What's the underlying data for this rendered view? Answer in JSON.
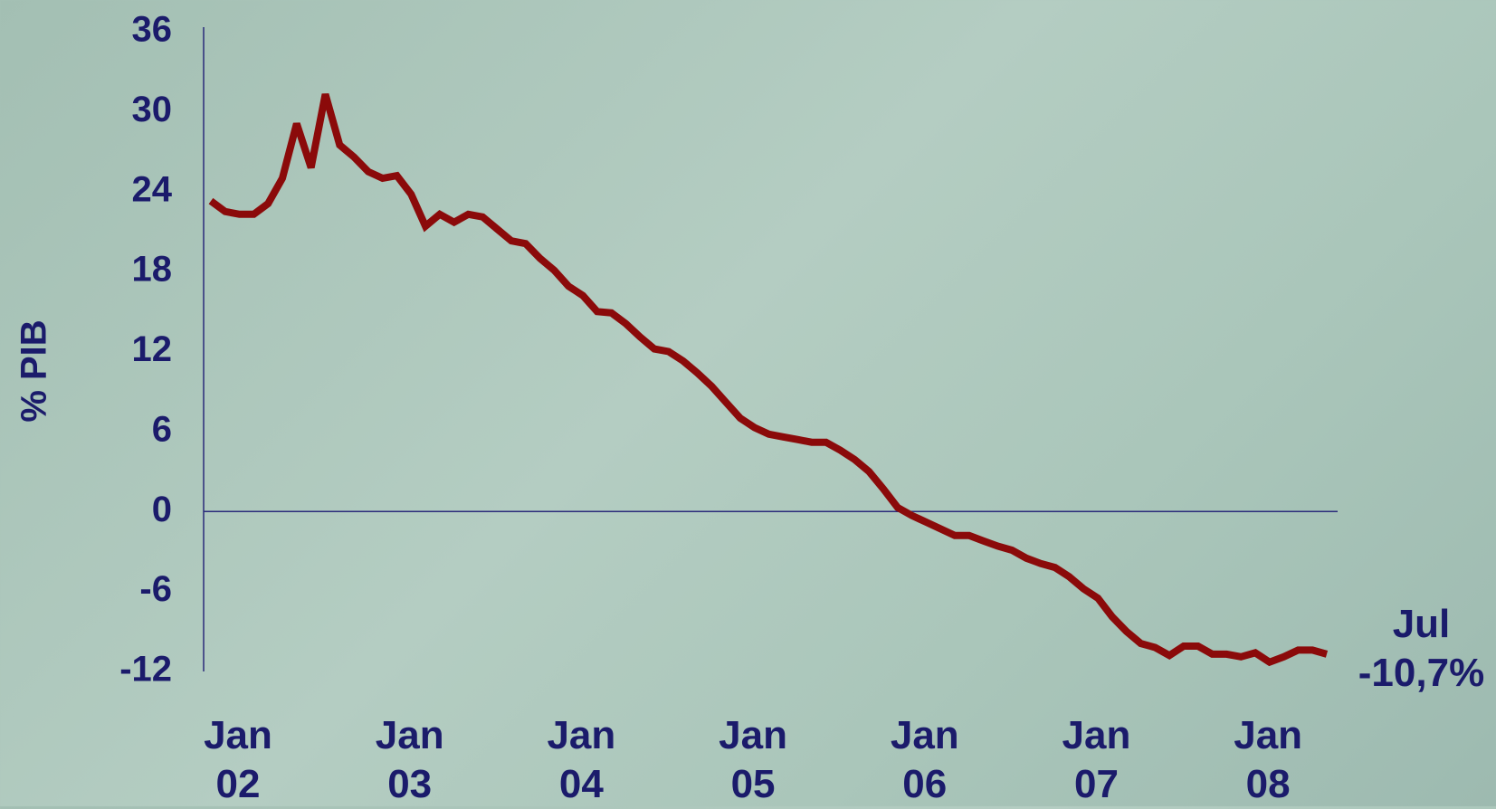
{
  "chart_data": {
    "type": "line",
    "ylabel": "% PIB",
    "annotation": "Jul\n-10,7%",
    "color": "#8b0a0a",
    "ylim": [
      -12,
      36
    ],
    "yticks": [
      -12,
      -6,
      0,
      6,
      12,
      18,
      24,
      30,
      36
    ],
    "categories": [
      "Jan\n02",
      null,
      null,
      null,
      null,
      null,
      null,
      null,
      null,
      null,
      null,
      null,
      "Jan\n03",
      null,
      null,
      null,
      null,
      null,
      null,
      null,
      null,
      null,
      null,
      null,
      "Jan\n04",
      null,
      null,
      null,
      null,
      null,
      null,
      null,
      null,
      null,
      null,
      null,
      "Jan\n05",
      null,
      null,
      null,
      null,
      null,
      null,
      null,
      null,
      null,
      null,
      null,
      "Jan\n06",
      null,
      null,
      null,
      null,
      null,
      null,
      null,
      null,
      null,
      null,
      null,
      "Jan\n07",
      null,
      null,
      null,
      null,
      null,
      null,
      null,
      null,
      null,
      null,
      null,
      "Jan\n08",
      null,
      null,
      null,
      null,
      null,
      null
    ],
    "values": [
      23.3,
      22.5,
      22.3,
      22.3,
      23.1,
      25.0,
      29.1,
      25.8,
      31.3,
      27.5,
      26.6,
      25.5,
      25.0,
      25.2,
      23.8,
      21.4,
      22.3,
      21.7,
      22.3,
      22.1,
      21.2,
      20.3,
      20.1,
      19.0,
      18.1,
      16.9,
      16.2,
      15.0,
      14.9,
      14.1,
      13.1,
      12.2,
      12.0,
      11.3,
      10.4,
      9.4,
      8.2,
      7.0,
      6.3,
      5.8,
      5.6,
      5.4,
      5.2,
      5.2,
      4.6,
      3.9,
      3.0,
      1.7,
      0.3,
      -0.3,
      -0.8,
      -1.3,
      -1.8,
      -1.8,
      -2.2,
      -2.6,
      -2.9,
      -3.5,
      -3.9,
      -4.2,
      -4.9,
      -5.8,
      -6.5,
      -7.9,
      -9.0,
      -9.9,
      -10.2,
      -10.8,
      -10.1,
      -10.1,
      -10.7,
      -10.7,
      -10.9,
      -10.6,
      -11.3,
      -10.9,
      -10.4,
      -10.4,
      -10.7
    ]
  }
}
